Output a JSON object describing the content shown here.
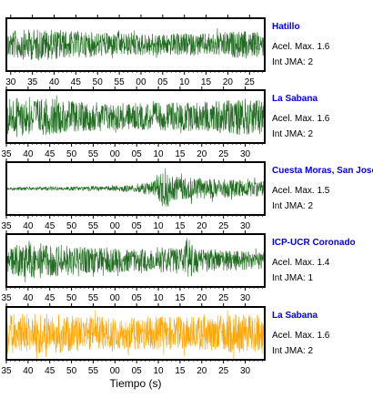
{
  "colors": {
    "trace_green": "#1f6b1f",
    "trace_orange": "#ffa500",
    "station_label": "#0000ee",
    "frame": "#000000"
  },
  "chart_data": {
    "type": "line",
    "description_type": "seismogram traces",
    "xlabel": "Tiempo (s)",
    "panels": [
      {
        "station": "Hatillo",
        "acel_label": "Acel. Max. 1.6",
        "jma_label": "Int JMA: 2",
        "color": "#1f6b1f",
        "ticks": [
          "30",
          "35",
          "40",
          "45",
          "50",
          "55",
          "00",
          "05",
          "10",
          "15",
          "20",
          "25"
        ],
        "tick_start_sec": 30,
        "x_range_sec": [
          29,
          88.5
        ],
        "envelope": [
          [
            0,
            0.55
          ],
          [
            0.12,
            0.65
          ],
          [
            0.25,
            0.55
          ],
          [
            0.5,
            0.45
          ],
          [
            0.75,
            0.45
          ],
          [
            0.9,
            0.55
          ],
          [
            1,
            0.5
          ]
        ]
      },
      {
        "station": "La Sabana",
        "acel_label": "Acel. Max. 1.6",
        "jma_label": "Int JMA: 2",
        "color": "#1f6b1f",
        "ticks": [
          "35",
          "40",
          "45",
          "50",
          "55",
          "00",
          "05",
          "10",
          "15",
          "20",
          "25",
          "30"
        ],
        "tick_start_sec": 35,
        "x_range_sec": [
          35,
          94.5
        ],
        "envelope": [
          [
            0,
            0.8
          ],
          [
            0.15,
            0.75
          ],
          [
            0.3,
            0.6
          ],
          [
            0.5,
            0.55
          ],
          [
            0.75,
            0.6
          ],
          [
            0.9,
            0.75
          ],
          [
            1,
            0.7
          ]
        ]
      },
      {
        "station": "Cuesta Moras, San Jose",
        "acel_label": "Acel. Max. 1.5",
        "jma_label": "Int JMA: 2",
        "color": "#1f6b1f",
        "ticks": [
          "35",
          "40",
          "45",
          "50",
          "55",
          "00",
          "05",
          "10",
          "15",
          "20",
          "25",
          "30"
        ],
        "tick_start_sec": 35,
        "x_range_sec": [
          35,
          94.5
        ],
        "envelope": [
          [
            0,
            0.06
          ],
          [
            0.3,
            0.08
          ],
          [
            0.33,
            0.12
          ],
          [
            0.36,
            0.08
          ],
          [
            0.5,
            0.15
          ],
          [
            0.58,
            0.35
          ],
          [
            0.61,
            0.95
          ],
          [
            0.64,
            0.5
          ],
          [
            0.8,
            0.4
          ],
          [
            1,
            0.3
          ]
        ]
      },
      {
        "station": "ICP-UCR Coronado",
        "acel_label": "Acel. Max. 1.4",
        "jma_label": "Int JMA: 1",
        "color": "#1f6b1f",
        "ticks": [
          "35",
          "40",
          "45",
          "50",
          "55",
          "00",
          "05",
          "10",
          "15",
          "20",
          "25",
          "30"
        ],
        "tick_start_sec": 35,
        "x_range_sec": [
          35,
          94.5
        ],
        "envelope": [
          [
            0,
            0.55
          ],
          [
            0.1,
            0.75
          ],
          [
            0.3,
            0.55
          ],
          [
            0.5,
            0.45
          ],
          [
            0.68,
            0.55
          ],
          [
            0.7,
            0.9
          ],
          [
            0.73,
            0.5
          ],
          [
            1,
            0.35
          ]
        ]
      },
      {
        "station": "La Sabana",
        "acel_label": "Acel. Max. 1.6",
        "jma_label": "Int JMA: 2",
        "color": "#ffa500",
        "ticks": [
          "35",
          "40",
          "45",
          "50",
          "55",
          "00",
          "05",
          "10",
          "15",
          "20",
          "25",
          "30"
        ],
        "tick_start_sec": 35,
        "x_range_sec": [
          35,
          94.5
        ],
        "envelope": [
          [
            0,
            0.8
          ],
          [
            0.15,
            0.85
          ],
          [
            0.3,
            0.7
          ],
          [
            0.5,
            0.65
          ],
          [
            0.75,
            0.7
          ],
          [
            0.9,
            0.8
          ],
          [
            1,
            0.75
          ]
        ]
      }
    ]
  }
}
